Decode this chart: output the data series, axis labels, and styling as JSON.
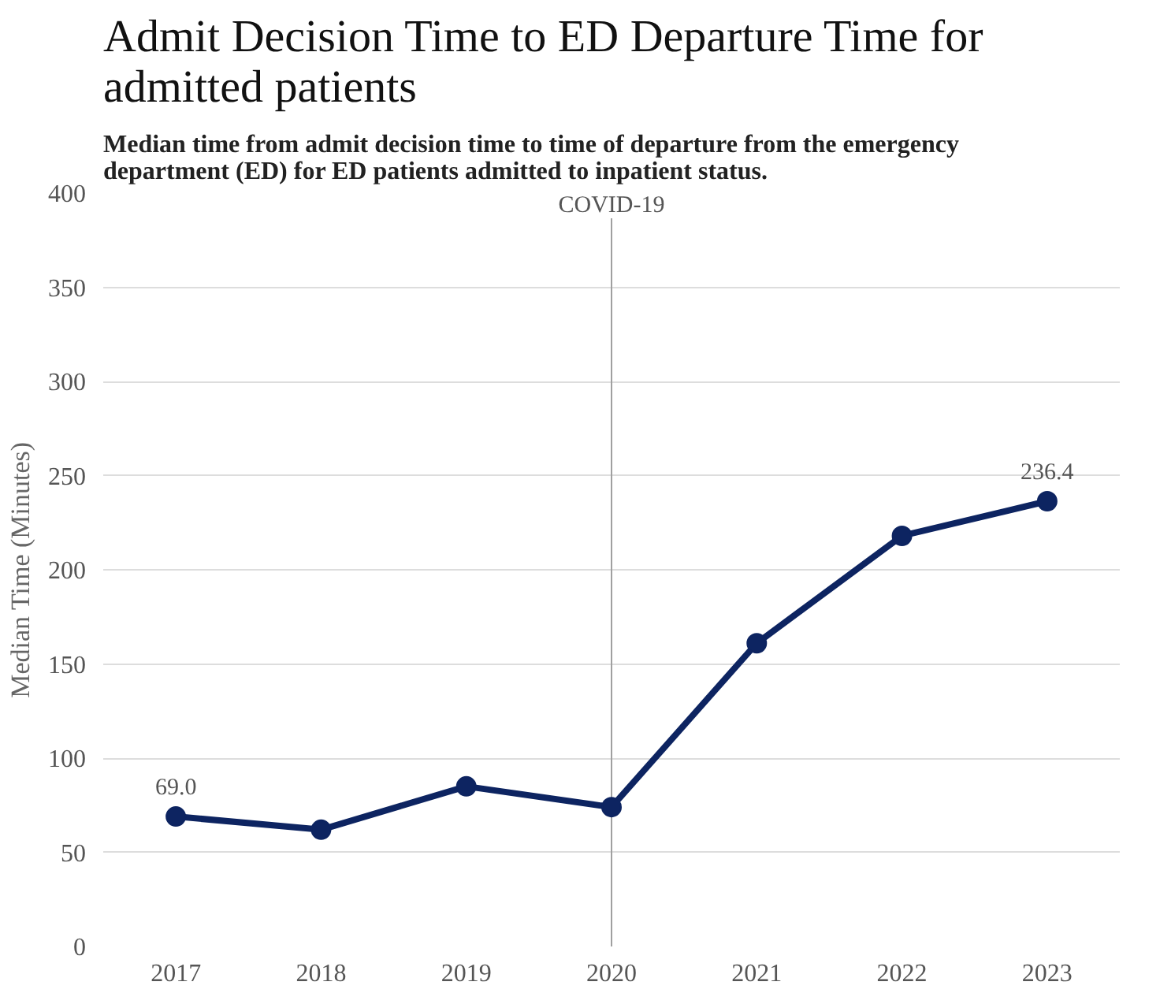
{
  "chart_data": {
    "type": "line",
    "title": "Admit Decision Time to ED Departure Time for admitted patients",
    "subtitle": "Median time from admit decision time to time of departure from the emergency department (ED) for ED patients admitted to inpatient status.",
    "ylabel": "Median Time (Minutes)",
    "categories": [
      "2017",
      "2018",
      "2019",
      "2020",
      "2021",
      "2022",
      "2023"
    ],
    "series": [
      {
        "color": "#0d2461",
        "values": [
          69.0,
          62,
          85,
          74,
          161,
          218,
          236.4
        ],
        "value_labels": [
          "69.0",
          null,
          null,
          null,
          null,
          null,
          "236.4"
        ]
      }
    ],
    "ylim": [
      0,
      400
    ],
    "yticks": [
      0,
      50,
      100,
      150,
      200,
      250,
      300,
      350,
      400
    ],
    "ref_lines": [
      {
        "axis": "x",
        "value": "2020",
        "label": "COVID-19",
        "color": "#a0a0a0"
      }
    ],
    "grid": "y",
    "marker": "circle",
    "line_style": "solid"
  }
}
